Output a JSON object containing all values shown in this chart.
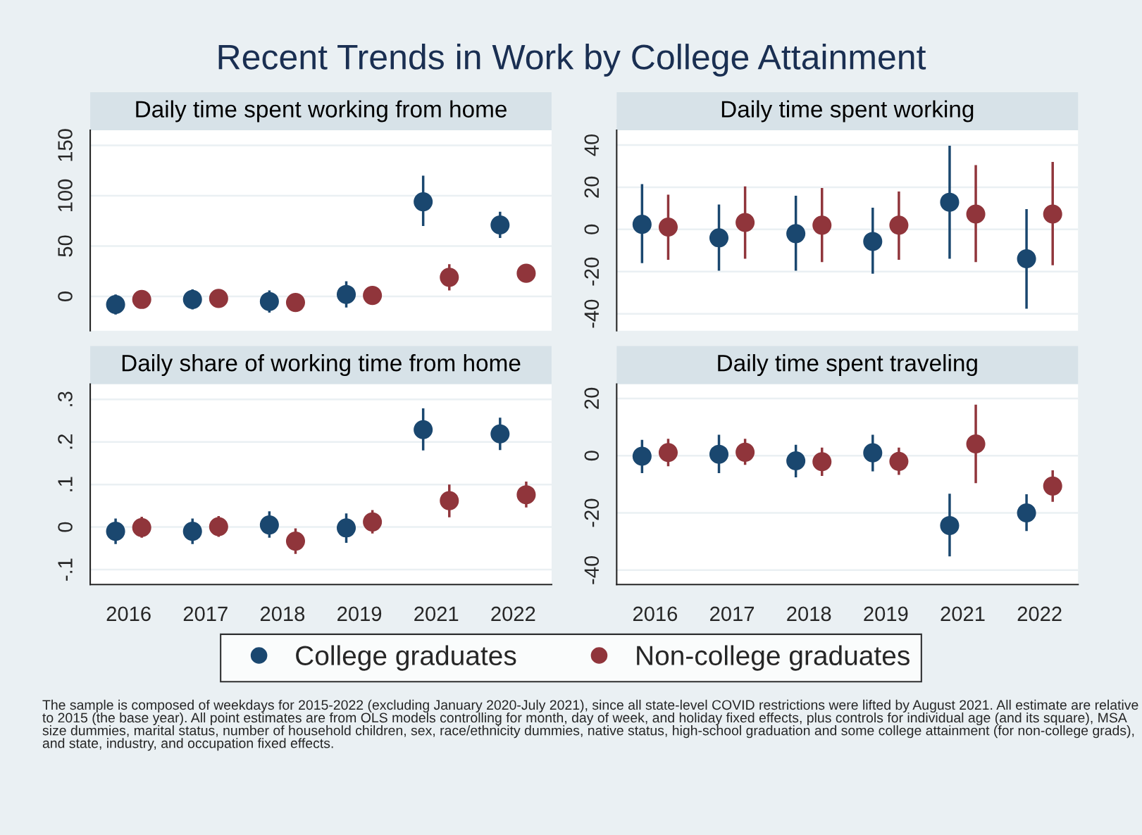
{
  "chart_data": [
    {
      "type": "scatter",
      "title": "Daily time spent working from home",
      "annotations": [
        "Recent Trends in Work by College Attainment"
      ],
      "categories": [
        "2016",
        "2017",
        "2018",
        "2019",
        "2021",
        "2022"
      ],
      "series": [
        {
          "name": "College graduates",
          "color": "#1a476f",
          "values": [
            -8,
            -3,
            -5,
            2,
            94,
            71
          ],
          "errors": [
            [
              -18,
              2
            ],
            [
              -13,
              7
            ],
            [
              -16,
              6
            ],
            [
              -11,
              15
            ],
            [
              70,
              120
            ],
            [
              58,
              84
            ]
          ]
        },
        {
          "name": "Non-college graduates",
          "color": "#90353b",
          "values": [
            -3,
            -2,
            -6,
            1,
            19,
            23
          ],
          "errors": [
            null,
            null,
            null,
            [
              -7,
              10
            ],
            [
              6,
              32
            ],
            null
          ]
        }
      ],
      "ylim": [
        -34,
        165
      ],
      "yticks": [
        0,
        50,
        100,
        150
      ],
      "grid": "y",
      "marker": "circle",
      "tick_labels": "y",
      "legend": "bottom"
    },
    {
      "type": "scatter",
      "title": "Daily time spent working",
      "categories": [
        "2016",
        "2017",
        "2018",
        "2019",
        "2021",
        "2022"
      ],
      "series": [
        {
          "color": "#1a476f",
          "values": [
            2.4,
            -4,
            -2,
            -5.7,
            12.9,
            -13.9
          ],
          "errors": [
            [
              -16,
              21.5
            ],
            [
              -19.6,
              11.8
            ],
            [
              -19.6,
              16
            ],
            [
              -21,
              10.3
            ],
            [
              -13.9,
              39.7
            ],
            [
              -37.6,
              9.6
            ]
          ]
        },
        {
          "color": "#90353b",
          "values": [
            1.1,
            3.3,
            2,
            2,
            7.3,
            7.3
          ],
          "errors": [
            [
              -14.4,
              16.5
            ],
            [
              -13.9,
              20.4
            ],
            [
              -15.5,
              19.6
            ],
            [
              -14.4,
              18
            ],
            [
              -15.5,
              30.5
            ],
            [
              -17,
              32
            ]
          ]
        }
      ],
      "ylim": [
        -48,
        47
      ],
      "yticks": [
        -40,
        -20,
        0,
        20,
        40
      ],
      "grid": "y",
      "marker": "circle",
      "tick_labels": "y"
    },
    {
      "type": "scatter",
      "title": "Daily share of working time from home",
      "categories": [
        "2016",
        "2017",
        "2018",
        "2019",
        "2021",
        "2022"
      ],
      "series": [
        {
          "color": "#1a476f",
          "values": [
            -0.01,
            -0.01,
            0.005,
            -0.002,
            0.229,
            0.219
          ],
          "errors": [
            [
              -0.04,
              0.02
            ],
            [
              -0.04,
              0.02
            ],
            [
              -0.025,
              0.037
            ],
            [
              -0.037,
              0.032
            ],
            [
              0.18,
              0.279
            ],
            [
              0.181,
              0.257
            ]
          ]
        },
        {
          "color": "#90353b",
          "values": [
            -0.001,
            0.001,
            -0.033,
            0.012,
            0.062,
            0.076
          ],
          "errors": [
            [
              -0.025,
              0.024
            ],
            [
              -0.023,
              0.026
            ],
            [
              -0.063,
              -0.003
            ],
            [
              -0.015,
              0.04
            ],
            [
              0.023,
              0.1
            ],
            [
              0.046,
              0.107
            ]
          ]
        }
      ],
      "ylim": [
        -0.135,
        0.336
      ],
      "yticks": [
        {
          "value": -0.1,
          "label": "-.1"
        },
        0,
        {
          "value": 0.1,
          "label": ".1"
        },
        {
          "value": 0.2,
          "label": ".2"
        },
        {
          "value": 0.3,
          "label": ".3"
        }
      ],
      "grid": "y",
      "marker": "circle"
    },
    {
      "type": "scatter",
      "title": "Daily time spent traveling",
      "categories": [
        "2016",
        "2017",
        "2018",
        "2019",
        "2021",
        "2022"
      ],
      "series": [
        {
          "color": "#1a476f",
          "values": [
            -0.2,
            0.5,
            -1.8,
            1,
            -24.4,
            -20
          ],
          "errors": [
            [
              -6.1,
              5.5
            ],
            [
              -6.1,
              7.3
            ],
            [
              -7.6,
              3.8
            ],
            [
              -5.5,
              7.3
            ],
            [
              -35.2,
              -13.3
            ],
            [
              -26.3,
              -13.5
            ]
          ]
        },
        {
          "color": "#90353b",
          "values": [
            1.1,
            1.2,
            -2.1,
            -2,
            4.1,
            -10.6
          ],
          "errors": [
            [
              -3.7,
              5.9
            ],
            [
              -3.2,
              5.9
            ],
            [
              -7.1,
              2.8
            ],
            [
              -6.7,
              2.8
            ],
            [
              -9.6,
              17.8
            ],
            [
              -16.1,
              -5.1
            ]
          ]
        }
      ],
      "ylim": [
        -45,
        25
      ],
      "yticks": [
        -40,
        -20,
        0,
        20
      ],
      "grid": "y",
      "marker": "circle",
      "annotations": [
        "The sample is composed of weekdays for 2015-2022 (excluding January 2020-July 2021), since all state-level COVID restrictions were lifted by August 2021. All estimate are relative to 2015 (the base year). All point estimates are from OLS models controlling for month, day of week, and holiday fixed effects, plus controls for individual age (and its square), MSA size dummies, marital status, number of household children, sex, race/ethnicity dummies, native status, high-school graduation and some college attainment (for non-college grads), and state, industry, and occupation fixed effects."
      ]
    }
  ]
}
